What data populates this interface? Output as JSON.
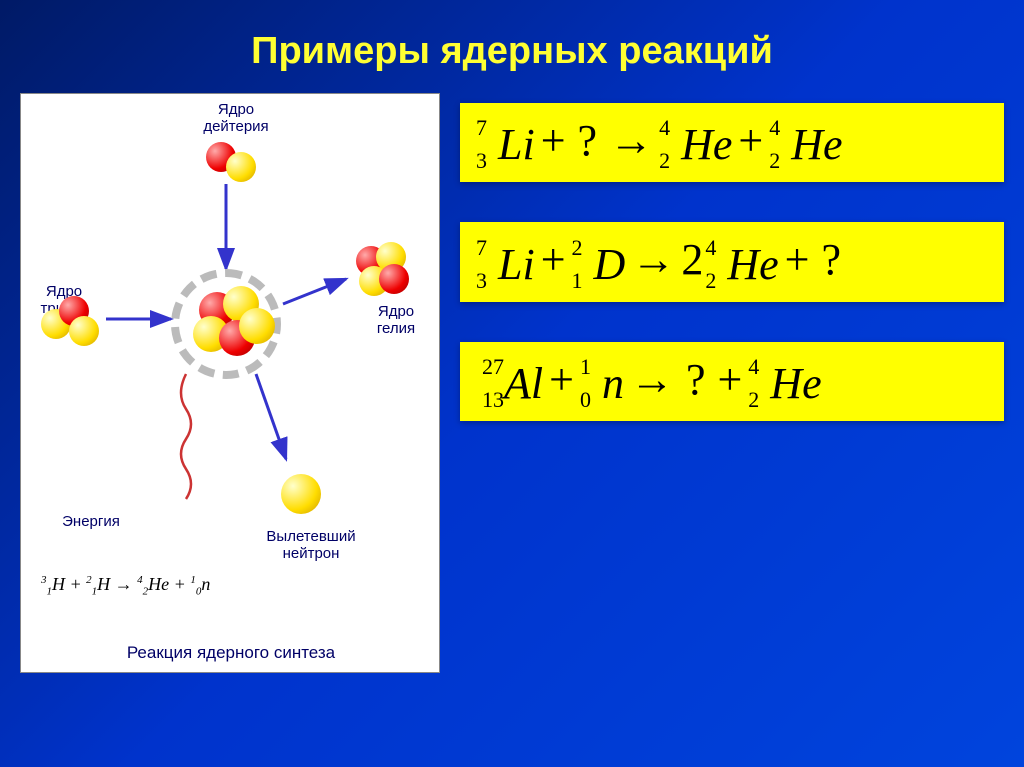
{
  "title": {
    "text": "Примеры ядерных реакций",
    "color": "#ffff33",
    "fontsize": 38
  },
  "diagram": {
    "background": "#ffffff",
    "labels": {
      "deuterium": "Ядро\nдейтерия",
      "tritium": "Ядро\nтрития",
      "helium": "Ядро\nгелия",
      "energy": "Энергия",
      "neutron_out": "Вылетевший\nнейтрон",
      "caption": "Реакция ядерного синтеза"
    },
    "label_color": "#000080",
    "colors": {
      "proton": "#ee1111",
      "neutron": "#ffdd00",
      "ring": "#bbbbbb",
      "arrow": "#3333cc",
      "energy_wave": "#cc3333"
    },
    "fusion_eq": {
      "reactants": [
        {
          "mass": "3",
          "atomic": "1",
          "symbol": "H"
        },
        {
          "mass": "2",
          "atomic": "1",
          "symbol": "H"
        }
      ],
      "products": [
        {
          "mass": "4",
          "atomic": "2",
          "symbol": "He"
        },
        {
          "mass": "1",
          "atomic": "0",
          "symbol": "n"
        }
      ]
    }
  },
  "equations": {
    "background": "#ffff00",
    "font": "Times New Roman",
    "fontsize": 44,
    "arrow": "→",
    "plus": "+",
    "unknown": "?",
    "items": [
      {
        "lhs": [
          {
            "mass": "7",
            "atomic": "3",
            "symbol": "Li"
          },
          {
            "unknown": true
          }
        ],
        "rhs": [
          {
            "mass": "4",
            "atomic": "2",
            "symbol": "He"
          },
          {
            "mass": "4",
            "atomic": "2",
            "symbol": "He"
          }
        ]
      },
      {
        "lhs": [
          {
            "mass": "7",
            "atomic": "3",
            "symbol": "Li"
          },
          {
            "mass": "2",
            "atomic": "1",
            "symbol": "D"
          }
        ],
        "rhs": [
          {
            "coef": "2",
            "mass": "4",
            "atomic": "2",
            "symbol": "He"
          },
          {
            "unknown": true
          }
        ]
      },
      {
        "lhs": [
          {
            "mass": "27",
            "atomic": "13",
            "symbol": "Al"
          },
          {
            "mass": "1",
            "atomic": "0",
            "symbol": "n"
          }
        ],
        "rhs": [
          {
            "unknown": true
          },
          {
            "mass": "4",
            "atomic": "2",
            "symbol": "He"
          }
        ]
      }
    ]
  }
}
